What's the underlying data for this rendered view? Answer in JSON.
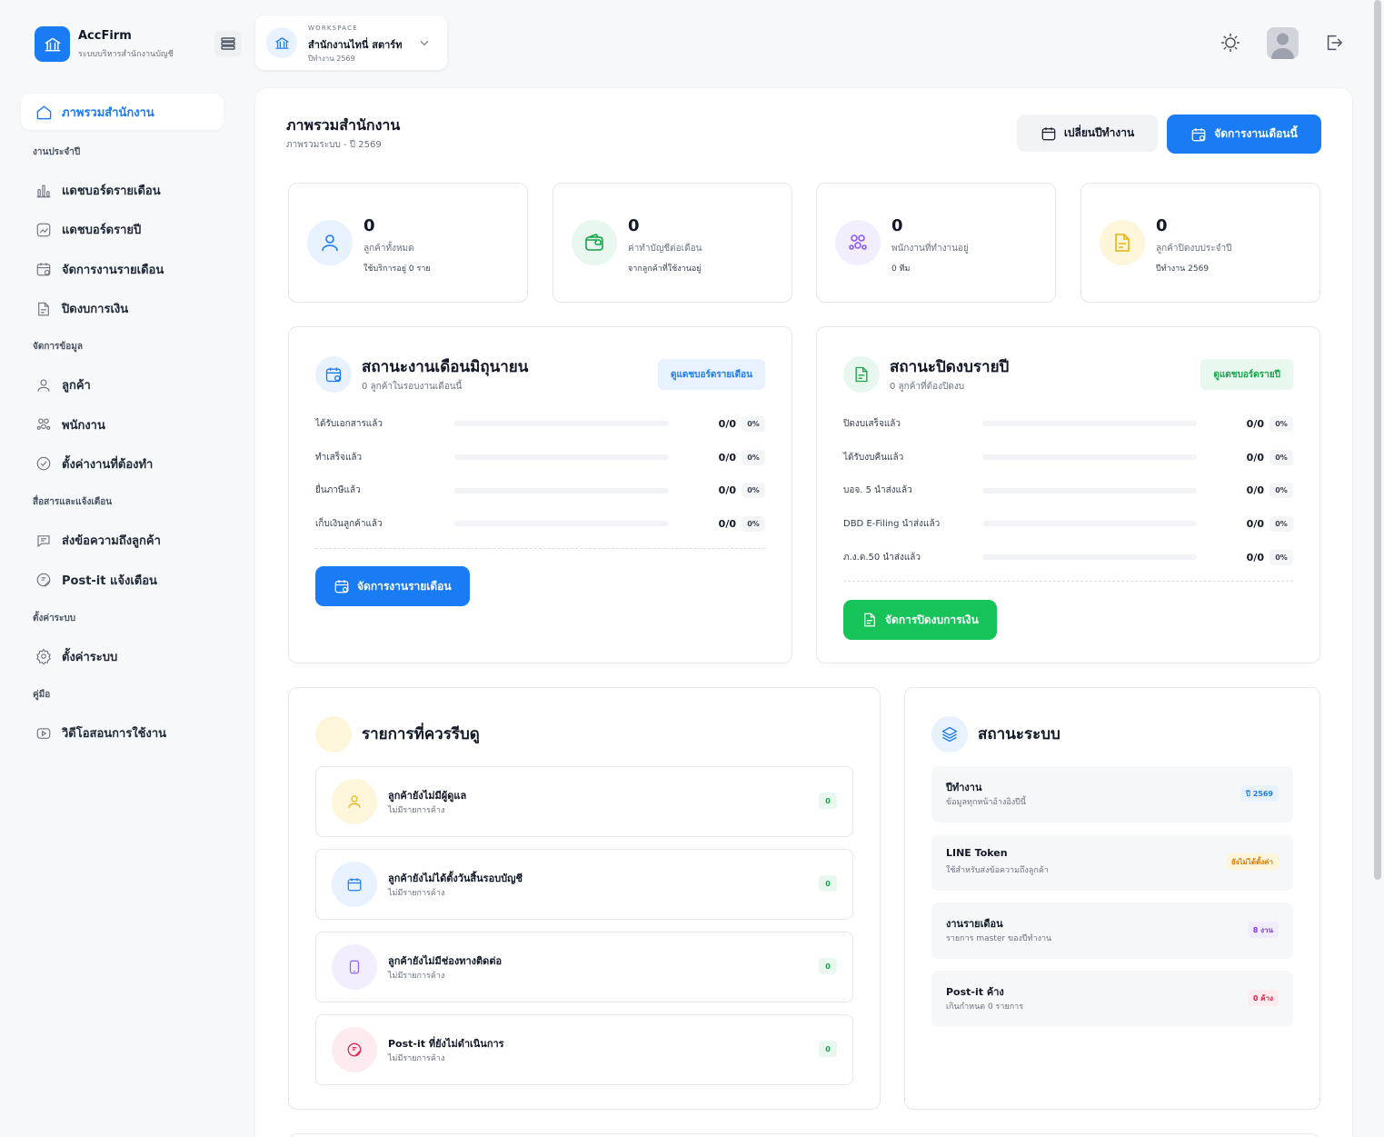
{
  "brand": {
    "name": "AccFirm",
    "subtitle": "ระบบบริหารสำนักงานบัญชี",
    "icon": "bank-icon"
  },
  "workspace": {
    "label": "WORKSPACE",
    "name": "สำนักงานไทนี่ สตาร์ท",
    "year": "ปีทำงาน 2569"
  },
  "nav": {
    "active": "ภาพรวมสำนักงาน",
    "groups": [
      {
        "title": "งานประจำปี",
        "items": [
          "แดชบอร์ดรายเดือน",
          "แดชบอร์ดรายปี",
          "จัดการงานรายเดือน",
          "ปิดงบการเงิน"
        ]
      },
      {
        "title": "จัดการข้อมูล",
        "items": [
          "ลูกค้า",
          "พนักงาน",
          "ตั้งค่างานที่ต้องทำ"
        ]
      },
      {
        "title": "สื่อสารและแจ้งเตือน",
        "items": [
          "ส่งข้อความถึงลูกค้า",
          "Post-it แจ้งเตือน"
        ]
      },
      {
        "title": "ตั้งค่าระบบ",
        "items": [
          "ตั้งค่าระบบ"
        ]
      },
      {
        "title": "คู่มือ",
        "items": [
          "วิดีโอสอนการใช้งาน"
        ]
      }
    ]
  },
  "page": {
    "title": "ภาพรวมสำนักงาน",
    "crumb": "ภาพรวมระบบ  -  ปี 2569",
    "btn_change_year": "เปลี่ยนปีทำงาน",
    "btn_manage_month": "จัดการงานเดือนนี้"
  },
  "stats": [
    {
      "value": "0",
      "label": "ลูกค้าทั้งหมด",
      "sub": "ใช้บริการอยู่ 0 ราย",
      "icon": "user-icon",
      "color": "#1a7cf5"
    },
    {
      "value": "0",
      "label": "ค่าทำบัญชีต่อเดือน",
      "sub": "จากลูกค้าที่ใช้งานอยู่",
      "icon": "wallet-icon",
      "color": "#16a34a"
    },
    {
      "value": "0",
      "label": "พนักงานที่ทำงานอยู่",
      "sub": "0 ทีม",
      "icon": "team-icon",
      "color": "#8b5cf6"
    },
    {
      "value": "0",
      "label": "ลูกค้าปิดงบประจำปี",
      "sub": "ปีทำงาน 2569",
      "icon": "document-icon",
      "color": "#eab308"
    }
  ],
  "monthly": {
    "title": "สถานะงานเดือนมิถุนายน",
    "sub": "0 ลูกค้าในรอบงานเดือนนี้",
    "link": "ดูแดชบอร์ดรายเดือน",
    "rows": [
      {
        "label": "ได้รับเอกสารแล้ว",
        "value": "0/0",
        "percent": "0%",
        "fill": 0
      },
      {
        "label": "ทำเสร็จแล้ว",
        "value": "0/0",
        "percent": "0%",
        "fill": 0
      },
      {
        "label": "ยื่นภาษีแล้ว",
        "value": "0/0",
        "percent": "0%",
        "fill": 0
      },
      {
        "label": "เก็บเงินลูกค้าแล้ว",
        "value": "0/0",
        "percent": "0%",
        "fill": 0
      }
    ],
    "action": "จัดการงานรายเดือน"
  },
  "yearly": {
    "title": "สถานะปิดงบรายปี",
    "sub": "0 ลูกค้าที่ต้องปิดงบ",
    "link": "ดูแดชบอร์ดรายปี",
    "rows": [
      {
        "label": "ปิดงบเสร็จแล้ว",
        "value": "0/0",
        "percent": "0%",
        "fill": 0
      },
      {
        "label": "ได้รับงบคืนแล้ว",
        "value": "0/0",
        "percent": "0%",
        "fill": 0
      },
      {
        "label": "บอจ. 5 นำส่งแล้ว",
        "value": "0/0",
        "percent": "0%",
        "fill": 0
      },
      {
        "label": "DBD E-Filing นำส่งแล้ว",
        "value": "0/0",
        "percent": "0%",
        "fill": 0
      },
      {
        "label": "ภ.ง.ด.50 นำส่งแล้ว",
        "value": "0/0",
        "percent": "0%",
        "fill": 0
      }
    ],
    "action": "จัดการปิดงบการเงิน"
  },
  "review": {
    "title": "รายการที่ควรรีบดู",
    "items": [
      {
        "title": "ลูกค้ายังไม่มีผู้ดูแล",
        "sub": "ไม่มีรายการค้าง",
        "count": "0",
        "icon": "user-icon",
        "color": "#eab308"
      },
      {
        "title": "ลูกค้ายังไม่ได้ตั้งวันสิ้นรอบบัญชี",
        "sub": "ไม่มีรายการค้าง",
        "count": "0",
        "icon": "calendar-icon",
        "color": "#1a7cf5"
      },
      {
        "title": "ลูกค้ายังไม่มีช่องทางติดต่อ",
        "sub": "ไม่มีรายการค้าง",
        "count": "0",
        "icon": "phone-icon",
        "color": "#8b5cf6"
      },
      {
        "title": "Post-it ที่ยังไม่ดำเนินการ",
        "sub": "ไม่มีรายการค้าง",
        "count": "0",
        "icon": "sticky-note-icon",
        "color": "#e11d48"
      }
    ]
  },
  "system": {
    "title": "สถานะระบบ",
    "items": [
      {
        "title": "ปีทำงาน",
        "sub": "ข้อมูลทุกหน้าอ้างอิงปีนี้",
        "badge": "ปี 2569",
        "badge_color": "#1a7cf5",
        "badge_bg": "#e8f1fe"
      },
      {
        "title": "LINE Token",
        "sub": "ใช้สำหรับส่งข้อความถึงลูกค้า",
        "badge": "ยังไม่ได้ตั้งค่า",
        "badge_color": "#d97706",
        "badge_bg": "#fef6da"
      },
      {
        "title": "งานรายเดือน",
        "sub": "รายการ master ของปีทำงาน",
        "badge": "8 งาน",
        "badge_color": "#7c3aed",
        "badge_bg": "#f1ebfe"
      },
      {
        "title": "Post-it ค้าง",
        "sub": "เกินกำหนด 0 รายการ",
        "badge": "0 ค้าง",
        "badge_color": "#e11d48",
        "badge_bg": "#fdebef"
      }
    ]
  }
}
